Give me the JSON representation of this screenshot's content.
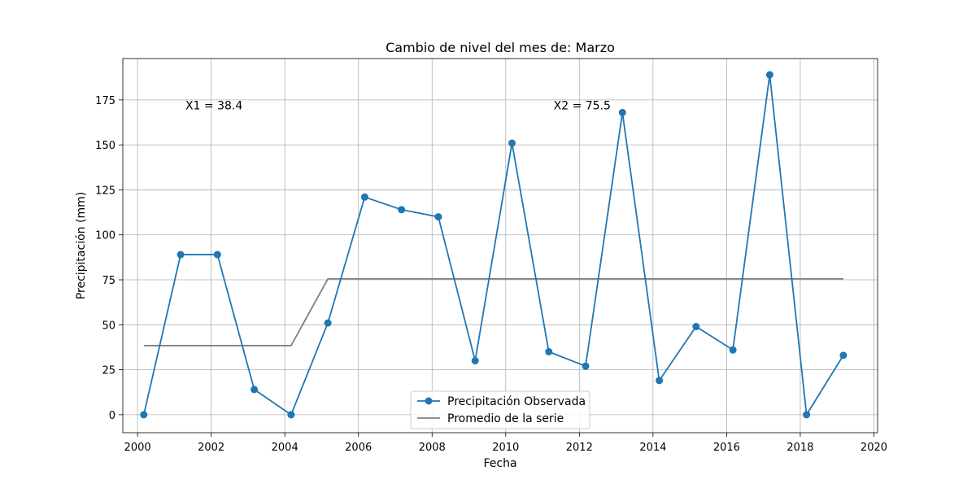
{
  "chart_data": {
    "type": "line",
    "title": "Cambio de nivel del mes de: Marzo",
    "xlabel": "Fecha",
    "ylabel": "Precipitación (mm)",
    "xlim": [
      1999.6,
      2020.1
    ],
    "ylim": [
      -10,
      198
    ],
    "xticks": [
      2000,
      2002,
      2004,
      2006,
      2008,
      2010,
      2012,
      2014,
      2016,
      2018,
      2020
    ],
    "yticks": [
      0,
      25,
      50,
      75,
      100,
      125,
      150,
      175
    ],
    "grid": true,
    "legend_position": "bottom-center",
    "series": [
      {
        "name": "Precipitación Observada",
        "color": "#1f77b4",
        "marker": "circle",
        "points": [
          {
            "x": 2000.17,
            "y": 0
          },
          {
            "x": 2001.17,
            "y": 89
          },
          {
            "x": 2002.17,
            "y": 89
          },
          {
            "x": 2003.17,
            "y": 14
          },
          {
            "x": 2004.17,
            "y": 0
          },
          {
            "x": 2005.17,
            "y": 51
          },
          {
            "x": 2006.17,
            "y": 121
          },
          {
            "x": 2007.17,
            "y": 114
          },
          {
            "x": 2008.17,
            "y": 110
          },
          {
            "x": 2009.17,
            "y": 30
          },
          {
            "x": 2010.17,
            "y": 151
          },
          {
            "x": 2011.17,
            "y": 35
          },
          {
            "x": 2012.17,
            "y": 27
          },
          {
            "x": 2013.17,
            "y": 168
          },
          {
            "x": 2014.17,
            "y": 19
          },
          {
            "x": 2015.17,
            "y": 49
          },
          {
            "x": 2016.17,
            "y": 36
          },
          {
            "x": 2017.17,
            "y": 189
          },
          {
            "x": 2018.17,
            "y": 0
          },
          {
            "x": 2019.17,
            "y": 33
          }
        ]
      },
      {
        "name": "Promedio de la serie",
        "color": "#808080",
        "marker": "none",
        "points": [
          {
            "x": 2000.17,
            "y": 38.4
          },
          {
            "x": 2004.17,
            "y": 38.4
          },
          {
            "x": 2005.17,
            "y": 75.5
          },
          {
            "x": 2019.17,
            "y": 75.5
          }
        ]
      }
    ],
    "annotations": [
      {
        "text": "X1 = 38.4",
        "x": 2001.3,
        "y": 172
      },
      {
        "text": "X2 = 75.5",
        "x": 2011.3,
        "y": 172
      }
    ]
  }
}
